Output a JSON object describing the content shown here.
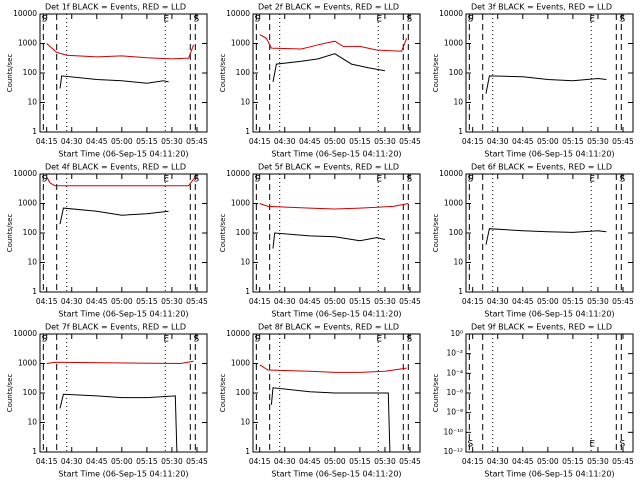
{
  "chart_data": [
    {
      "type": "line",
      "title": "Det 1f BLACK = Events, RED = LLD",
      "ylabel": "Counts/sec",
      "xlabel": "Start Time (06-Sep-15 04:11:20)",
      "log": true,
      "xlim": [
        "04:11",
        "05:51"
      ],
      "xticks": [
        "04:15",
        "04:30",
        "04:45",
        "05:00",
        "05:15",
        "05:30",
        "05:45"
      ],
      "ylim": [
        1,
        10000
      ],
      "yticks": [
        1,
        10,
        100,
        1000,
        10000
      ],
      "markers": [
        {
          "x": "04:13",
          "style": "dashed",
          "label": "S"
        },
        {
          "x": "04:21",
          "style": "dashed"
        },
        {
          "x": "04:27",
          "style": "dotted"
        },
        {
          "x": "05:26",
          "style": "dotted",
          "label": "E"
        },
        {
          "x": "05:41",
          "style": "dashed"
        },
        {
          "x": "05:44",
          "style": "dashed",
          "label": "S"
        }
      ],
      "series": [
        {
          "color": "#d00000",
          "x": [
            "04:15",
            "04:21",
            "04:27",
            "04:45",
            "05:00",
            "05:15",
            "05:30",
            "05:40",
            "05:43"
          ],
          "values": [
            1000,
            500,
            400,
            350,
            380,
            330,
            300,
            320,
            900
          ]
        },
        {
          "color": "#000000",
          "x": [
            "04:23",
            "04:24",
            "04:45",
            "05:00",
            "05:15",
            "05:25",
            "05:28"
          ],
          "values": [
            30,
            80,
            60,
            55,
            45,
            55,
            50
          ]
        }
      ]
    },
    {
      "type": "line",
      "title": "Det 2f BLACK = Events, RED = LLD",
      "ylabel": "Counts/sec",
      "xlabel": "Start Time (06-Sep-15 04:11:20)",
      "log": true,
      "xlim": [
        "04:11",
        "05:51"
      ],
      "xticks": [
        "04:15",
        "04:30",
        "04:45",
        "05:00",
        "05:15",
        "05:30",
        "05:45"
      ],
      "ylim": [
        1,
        10000
      ],
      "yticks": [
        1,
        10,
        100,
        1000,
        10000
      ],
      "markers": [
        {
          "x": "04:13",
          "style": "dashed",
          "label": "S"
        },
        {
          "x": "04:21",
          "style": "dashed"
        },
        {
          "x": "04:27",
          "style": "dotted"
        },
        {
          "x": "05:26",
          "style": "dotted",
          "label": "E"
        },
        {
          "x": "05:41",
          "style": "dashed"
        },
        {
          "x": "05:44",
          "style": "dashed",
          "label": "S"
        }
      ],
      "series": [
        {
          "color": "#d00000",
          "x": [
            "04:15",
            "04:19",
            "04:22",
            "04:40",
            "04:50",
            "05:00",
            "05:05",
            "05:15",
            "05:25",
            "05:40",
            "05:43"
          ],
          "values": [
            2000,
            1500,
            700,
            650,
            900,
            1200,
            800,
            800,
            600,
            550,
            1500
          ]
        },
        {
          "color": "#000000",
          "x": [
            "04:23",
            "04:25",
            "04:40",
            "04:50",
            "05:00",
            "05:10",
            "05:20",
            "05:30"
          ],
          "values": [
            50,
            200,
            250,
            300,
            450,
            200,
            150,
            120
          ]
        }
      ]
    },
    {
      "type": "line",
      "title": "Det 3f BLACK = Events, RED = LLD",
      "ylabel": "Counts/sec",
      "xlabel": "Start Time (06-Sep-15 04:11:20)",
      "log": true,
      "xlim": [
        "04:11",
        "05:51"
      ],
      "xticks": [
        "04:15",
        "04:30",
        "04:45",
        "05:00",
        "05:15",
        "05:30",
        "05:45"
      ],
      "ylim": [
        1,
        10000
      ],
      "yticks": [
        1,
        10,
        100,
        1000,
        10000
      ],
      "markers": [
        {
          "x": "04:13",
          "style": "dashed",
          "label": "S"
        },
        {
          "x": "04:21",
          "style": "dashed"
        },
        {
          "x": "04:27",
          "style": "dotted"
        },
        {
          "x": "05:26",
          "style": "dotted",
          "label": "E"
        },
        {
          "x": "05:41",
          "style": "dashed"
        },
        {
          "x": "05:44",
          "style": "dashed",
          "label": "S"
        }
      ],
      "series": [
        {
          "color": "#000000",
          "x": [
            "04:23",
            "04:25",
            "04:45",
            "05:00",
            "05:15",
            "05:30",
            "05:35"
          ],
          "values": [
            20,
            80,
            75,
            60,
            55,
            65,
            60
          ]
        }
      ]
    },
    {
      "type": "line",
      "title": "Det 4f BLACK = Events, RED = LLD",
      "ylabel": "Counts/sec",
      "xlabel": "Start Time (06-Sep-15 04:11:20)",
      "log": true,
      "xlim": [
        "04:11",
        "05:51"
      ],
      "xticks": [
        "04:15",
        "04:30",
        "04:45",
        "05:00",
        "05:15",
        "05:30",
        "05:45"
      ],
      "ylim": [
        1,
        10000
      ],
      "yticks": [
        1,
        10,
        100,
        1000,
        10000
      ],
      "markers": [
        {
          "x": "04:13",
          "style": "dashed",
          "label": "S"
        },
        {
          "x": "04:21",
          "style": "dashed"
        },
        {
          "x": "04:27",
          "style": "dotted"
        },
        {
          "x": "05:26",
          "style": "dotted",
          "label": "E"
        },
        {
          "x": "05:41",
          "style": "dashed"
        },
        {
          "x": "05:44",
          "style": "dashed",
          "label": "S"
        }
      ],
      "series": [
        {
          "color": "#d00000",
          "x": [
            "04:15",
            "04:17",
            "04:20",
            "05:40",
            "05:44"
          ],
          "values": [
            8000,
            5000,
            4000,
            4000,
            8000
          ]
        },
        {
          "color": "#000000",
          "x": [
            "04:23",
            "04:25",
            "04:45",
            "05:00",
            "05:15",
            "05:28"
          ],
          "values": [
            200,
            700,
            550,
            400,
            450,
            550
          ]
        }
      ]
    },
    {
      "type": "line",
      "title": "Det 5f BLACK = Events, RED = LLD",
      "ylabel": "Counts/sec",
      "xlabel": "Start Time (06-Sep-15 04:11:20)",
      "log": true,
      "xlim": [
        "04:11",
        "05:51"
      ],
      "xticks": [
        "04:15",
        "04:30",
        "04:45",
        "05:00",
        "05:15",
        "05:30",
        "05:45"
      ],
      "ylim": [
        1,
        10000
      ],
      "yticks": [
        1,
        10,
        100,
        1000,
        10000
      ],
      "markers": [
        {
          "x": "04:13",
          "style": "dashed",
          "label": "S"
        },
        {
          "x": "04:21",
          "style": "dashed"
        },
        {
          "x": "04:27",
          "style": "dotted"
        },
        {
          "x": "05:26",
          "style": "dotted",
          "label": "E"
        },
        {
          "x": "05:41",
          "style": "dashed"
        },
        {
          "x": "05:44",
          "style": "dashed",
          "label": "S"
        }
      ],
      "series": [
        {
          "color": "#d00000",
          "x": [
            "04:15",
            "04:20",
            "04:45",
            "05:00",
            "05:15",
            "05:35",
            "05:44"
          ],
          "values": [
            1000,
            800,
            700,
            650,
            700,
            800,
            1000
          ]
        },
        {
          "color": "#000000",
          "x": [
            "04:23",
            "04:24",
            "04:45",
            "05:00",
            "05:15",
            "05:25",
            "05:30"
          ],
          "values": [
            30,
            100,
            80,
            75,
            55,
            70,
            60
          ]
        }
      ]
    },
    {
      "type": "line",
      "title": "Det 6f BLACK = Events, RED = LLD",
      "ylabel": "Counts/sec",
      "xlabel": "Start Time (06-Sep-15 04:11:20)",
      "log": true,
      "xlim": [
        "04:11",
        "05:51"
      ],
      "xticks": [
        "04:15",
        "04:30",
        "04:45",
        "05:00",
        "05:15",
        "05:30",
        "05:45"
      ],
      "ylim": [
        1,
        10000
      ],
      "yticks": [
        1,
        10,
        100,
        1000,
        10000
      ],
      "markers": [
        {
          "x": "04:13",
          "style": "dashed",
          "label": "S"
        },
        {
          "x": "04:21",
          "style": "dashed"
        },
        {
          "x": "04:27",
          "style": "dotted"
        },
        {
          "x": "05:26",
          "style": "dotted",
          "label": "E"
        },
        {
          "x": "05:41",
          "style": "dashed"
        },
        {
          "x": "05:44",
          "style": "dashed",
          "label": "S"
        }
      ],
      "series": [
        {
          "color": "#000000",
          "x": [
            "04:23",
            "04:25",
            "04:45",
            "05:00",
            "05:15",
            "05:30",
            "05:35"
          ],
          "values": [
            40,
            140,
            120,
            110,
            105,
            120,
            110
          ]
        }
      ]
    },
    {
      "type": "line",
      "title": "Det 7f BLACK = Events, RED = LLD",
      "ylabel": "Counts/sec",
      "xlabel": "Start Time (06-Sep-15 04:11:20)",
      "log": true,
      "xlim": [
        "04:11",
        "05:51"
      ],
      "xticks": [
        "04:15",
        "04:30",
        "04:45",
        "05:00",
        "05:15",
        "05:30",
        "05:45"
      ],
      "ylim": [
        1,
        10000
      ],
      "yticks": [
        1,
        10,
        100,
        1000,
        10000
      ],
      "markers": [
        {
          "x": "04:13",
          "style": "dashed",
          "label": "S"
        },
        {
          "x": "04:21",
          "style": "dashed"
        },
        {
          "x": "04:27",
          "style": "dotted"
        },
        {
          "x": "05:26",
          "style": "dotted",
          "label": "E"
        },
        {
          "x": "05:41",
          "style": "dashed"
        },
        {
          "x": "05:44",
          "style": "dashed",
          "label": "S"
        }
      ],
      "series": [
        {
          "color": "#d00000",
          "x": [
            "04:15",
            "04:20",
            "05:35",
            "05:43"
          ],
          "values": [
            1000,
            1100,
            1000,
            1200
          ]
        },
        {
          "color": "#000000",
          "x": [
            "04:23",
            "04:25",
            "04:45",
            "05:00",
            "05:15",
            "05:32",
            "05:33"
          ],
          "values": [
            30,
            90,
            80,
            70,
            70,
            80,
            1
          ]
        }
      ]
    },
    {
      "type": "line",
      "title": "Det 8f BLACK = Events, RED = LLD",
      "ylabel": "Counts/sec",
      "xlabel": "Start Time (06-Sep-15 04:11:20)",
      "log": true,
      "xlim": [
        "04:11",
        "05:51"
      ],
      "xticks": [
        "04:15",
        "04:30",
        "04:45",
        "05:00",
        "05:15",
        "05:30",
        "05:45"
      ],
      "ylim": [
        1,
        10000
      ],
      "yticks": [
        1,
        10,
        100,
        1000,
        10000
      ],
      "markers": [
        {
          "x": "04:13",
          "style": "dashed",
          "label": "S"
        },
        {
          "x": "04:21",
          "style": "dashed"
        },
        {
          "x": "04:27",
          "style": "dotted"
        },
        {
          "x": "05:26",
          "style": "dotted",
          "label": "E"
        },
        {
          "x": "05:41",
          "style": "dashed"
        },
        {
          "x": "05:44",
          "style": "dashed",
          "label": "S"
        }
      ],
      "series": [
        {
          "color": "#d00000",
          "x": [
            "04:15",
            "04:20",
            "04:45",
            "05:00",
            "05:15",
            "05:30",
            "05:43"
          ],
          "values": [
            900,
            600,
            550,
            500,
            500,
            550,
            700
          ]
        },
        {
          "color": "#000000",
          "x": [
            "04:22",
            "04:23",
            "04:45",
            "05:00",
            "05:15",
            "05:32",
            "05:33"
          ],
          "values": [
            40,
            150,
            110,
            100,
            100,
            100,
            1
          ]
        }
      ]
    },
    {
      "type": "line",
      "title": "Det 9f BLACK = Events, RED = LLD",
      "ylabel": "Counts/sec",
      "xlabel": "Start Time (06-Sep-15 04:11:20)",
      "log": true,
      "xlim": [
        "04:11",
        "05:51"
      ],
      "xticks": [
        "04:15",
        "04:30",
        "04:45",
        "05:00",
        "05:15",
        "05:30",
        "05:45"
      ],
      "ylim": [
        1e-12,
        1
      ],
      "yticks": [
        {
          "value": 1e-12,
          "label": "10⁻¹²"
        },
        {
          "value": 1e-10,
          "label": "10⁻¹⁰"
        },
        {
          "value": 1e-08,
          "label": "10⁻⁸"
        },
        {
          "value": 1e-06,
          "label": "10⁻⁶"
        },
        {
          "value": 0.0001,
          "label": "10⁻⁴"
        },
        {
          "value": 0.01,
          "label": "10⁻²"
        },
        {
          "value": 1,
          "label": "10⁰"
        }
      ],
      "marker_labels": "bottom",
      "markers": [
        {
          "x": "04:13",
          "style": "dashed",
          "label": "S"
        },
        {
          "x": "04:21",
          "style": "dashed"
        },
        {
          "x": "04:27",
          "style": "dotted"
        },
        {
          "x": "05:26",
          "style": "dotted",
          "label": "E"
        },
        {
          "x": "05:41",
          "style": "dashed"
        },
        {
          "x": "05:44",
          "style": "dashed",
          "label": "S"
        }
      ],
      "series": []
    }
  ]
}
